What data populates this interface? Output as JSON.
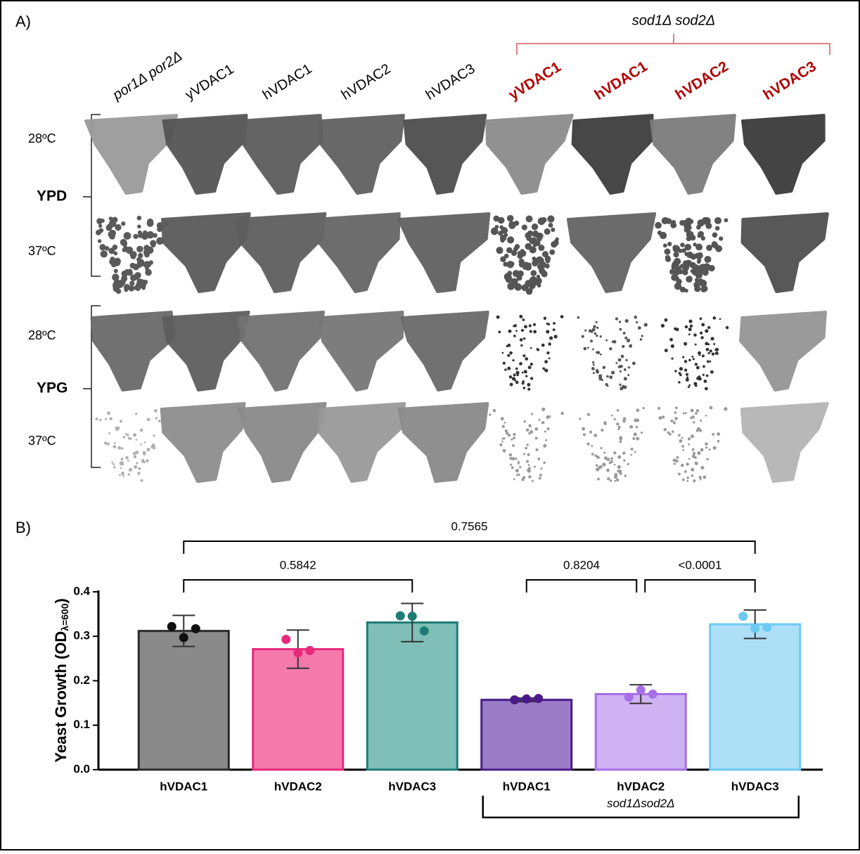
{
  "panel_a": {
    "label": "A)",
    "group_label": "sod1Δ sod2Δ",
    "columns": [
      "por1Δ por2Δ",
      "yVDAC1",
      "hVDAC1",
      "hVDAC2",
      "hVDAC3",
      "yVDAC1",
      "hVDAC1",
      "hVDAC2",
      "hVDAC3"
    ],
    "media": [
      {
        "name": "YPD",
        "temps": [
          "28ºC",
          "37ºC"
        ]
      },
      {
        "name": "YPG",
        "temps": [
          "28ºC",
          "37ºC"
        ]
      }
    ]
  },
  "chart_data": {
    "type": "bar",
    "panel_label": "B)",
    "ylabel": "Yeast Growth (OD",
    "ylabel_sub": "λ=600",
    "ylabel_end": ")",
    "categories": [
      "hVDAC1",
      "hVDAC2",
      "hVDAC3",
      "hVDAC1",
      "hVDAC2",
      "hVDAC3"
    ],
    "values": [
      0.312,
      0.271,
      0.331,
      0.157,
      0.17,
      0.327
    ],
    "errors": [
      0.035,
      0.043,
      0.043,
      0.004,
      0.021,
      0.032
    ],
    "points": [
      [
        0.322,
        0.297,
        0.317
      ],
      [
        0.293,
        0.263,
        0.268
      ],
      [
        0.346,
        0.345,
        0.312
      ],
      [
        0.157,
        0.159,
        0.16
      ],
      [
        0.163,
        0.179,
        0.17
      ],
      [
        0.345,
        0.318,
        0.32
      ]
    ],
    "colors": [
      "#8a8a8a",
      "#f57aab",
      "#7fbfb8",
      "#9b7cc6",
      "#cfb2f2",
      "#addff7"
    ],
    "edge_colors": [
      "#2b2b2b",
      "#e8287c",
      "#1d7c74",
      "#4a1a8a",
      "#a66fe8",
      "#6ccaf3"
    ],
    "point_colors": [
      "#111111",
      "#e8287c",
      "#1d7c74",
      "#4a1a8a",
      "#a66fe8",
      "#6ccaf3"
    ],
    "ylim": [
      0,
      0.4
    ],
    "yticks": [
      {
        "value": 0,
        "label": "0.0"
      },
      0.1,
      0.2,
      0.3,
      0.4
    ],
    "comparisons": [
      {
        "from": 0,
        "to": 5,
        "label": "0.7565"
      },
      {
        "from": 0,
        "to": 2,
        "label": "0.5842"
      },
      {
        "from": 3,
        "to": 4,
        "label": "0.8204"
      },
      {
        "from": 4,
        "to": 5,
        "label": "<0.0001"
      }
    ],
    "group": {
      "label": "sod1Δsod2Δ",
      "from": 3,
      "to": 5
    }
  }
}
